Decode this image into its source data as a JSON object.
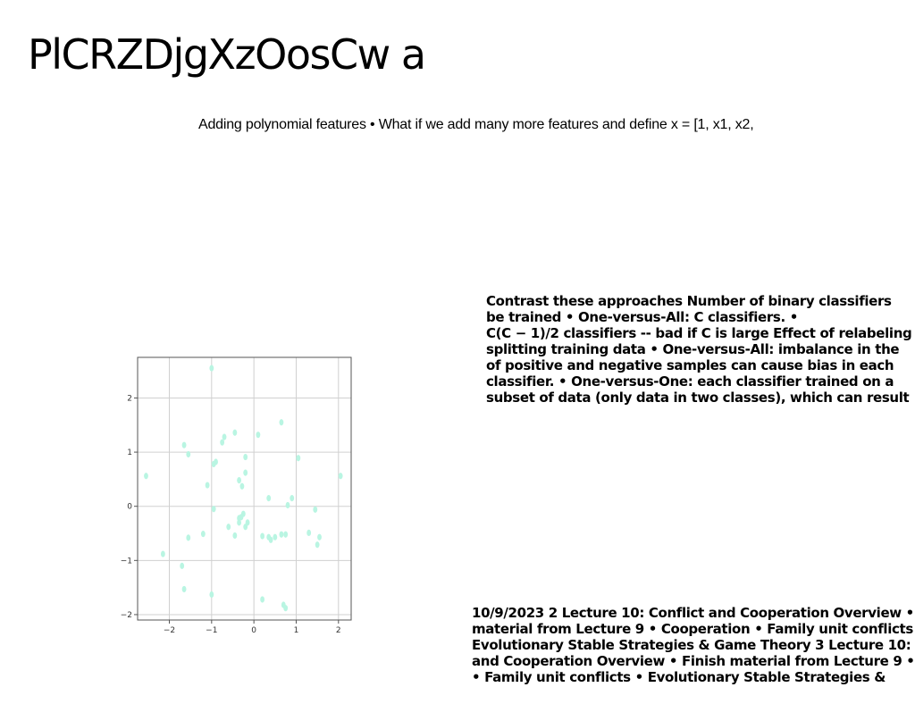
{
  "slide": {
    "title": "PlCRZDjgXzOosCw a",
    "subtitle": "Adding polynomial features • What if we add many more features and define x = [1, x1, x2,"
  },
  "contrast_block": {
    "lines": [
      "Contrast these approaches Number of binary classifiers",
      "be trained • One-versus-All: C classifiers. •",
      "C(C − 1)/2 classifiers -- bad if C is large Effect of relabeling",
      "splitting training data • One-versus-All: imbalance in the",
      "of positive and negative samples can cause bias in each",
      "classifier. • One-versus-One: each classifier trained on a",
      "subset of data (only data in two classes), which can result"
    ]
  },
  "lecture_block": {
    "lines": [
      "10/9/2023 2 Lecture 10: Conflict and Cooperation Overview •",
      "material from Lecture 9 • Cooperation • Family unit conflicts",
      "Evolutionary Stable Strategies & Game Theory 3 Lecture 10:",
      "and Cooperation Overview • Finish material from Lecture 9 •",
      "• Family unit conflicts • Evolutionary Stable Strategies &"
    ]
  },
  "chart_data": {
    "type": "scatter",
    "xlim": [
      -2.75,
      2.3
    ],
    "ylim": [
      -2.1,
      2.75
    ],
    "grid": true,
    "x_ticks": [
      -2,
      -1,
      0,
      1,
      2
    ],
    "y_ticks": [
      -2,
      -1,
      0,
      1,
      2
    ],
    "x_tick_labels": [
      "−2",
      "−1",
      "0",
      "1",
      "2"
    ],
    "y_tick_labels": [
      "−2",
      "−1",
      "0",
      "1",
      "2"
    ],
    "point_color": "#b9f5e2",
    "points": [
      [
        -1.0,
        2.55
      ],
      [
        -2.55,
        0.56
      ],
      [
        -1.65,
        1.13
      ],
      [
        -1.55,
        0.96
      ],
      [
        -0.75,
        1.18
      ],
      [
        -0.7,
        1.28
      ],
      [
        -0.45,
        1.36
      ],
      [
        0.1,
        1.32
      ],
      [
        0.65,
        1.55
      ],
      [
        -0.95,
        0.78
      ],
      [
        -0.9,
        0.82
      ],
      [
        -0.2,
        0.91
      ],
      [
        1.05,
        0.89
      ],
      [
        2.05,
        0.56
      ],
      [
        -1.1,
        0.39
      ],
      [
        -0.35,
        0.48
      ],
      [
        -0.28,
        0.37
      ],
      [
        -0.2,
        0.62
      ],
      [
        0.35,
        0.15
      ],
      [
        0.9,
        0.15
      ],
      [
        0.8,
        0.02
      ],
      [
        1.45,
        -0.06
      ],
      [
        -0.95,
        -0.05
      ],
      [
        -0.25,
        -0.14
      ],
      [
        -0.3,
        -0.2
      ],
      [
        -0.35,
        -0.22
      ],
      [
        -0.35,
        -0.3
      ],
      [
        -0.15,
        -0.3
      ],
      [
        -0.6,
        -0.38
      ],
      [
        -0.2,
        -0.38
      ],
      [
        -0.45,
        -0.54
      ],
      [
        -1.2,
        -0.51
      ],
      [
        -1.55,
        -0.58
      ],
      [
        0.2,
        -0.55
      ],
      [
        0.35,
        -0.57
      ],
      [
        0.4,
        -0.62
      ],
      [
        0.5,
        -0.57
      ],
      [
        0.65,
        -0.52
      ],
      [
        0.75,
        -0.52
      ],
      [
        1.3,
        -0.49
      ],
      [
        1.55,
        -0.57
      ],
      [
        1.5,
        -0.71
      ],
      [
        -2.15,
        -0.88
      ],
      [
        -1.7,
        -1.1
      ],
      [
        -1.65,
        -1.53
      ],
      [
        -1.0,
        -1.63
      ],
      [
        0.2,
        -1.72
      ],
      [
        0.7,
        -1.82
      ],
      [
        0.75,
        -1.88
      ]
    ]
  }
}
